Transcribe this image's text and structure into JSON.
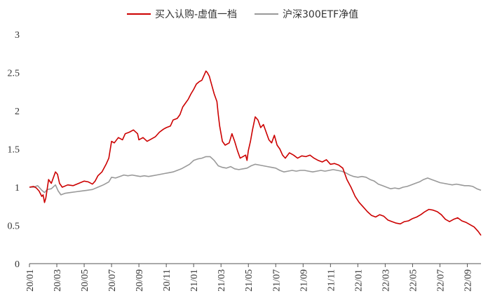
{
  "chart_data": {
    "type": "line",
    "title": "",
    "xlabel": "",
    "ylabel": "",
    "ylim": [
      0,
      3
    ],
    "y_ticks": [
      "0",
      "0.5",
      "1",
      "1.5",
      "2",
      "2.5",
      "3"
    ],
    "x_ticks": [
      "20/01",
      "20/03",
      "20/05",
      "20/07",
      "20/09",
      "20/11",
      "21/01",
      "21/03",
      "21/05",
      "21/07",
      "21/09",
      "21/11",
      "22/01",
      "22/03",
      "22/05",
      "22/07",
      "22/09"
    ],
    "x_range_months": [
      0,
      33
    ],
    "grid": false,
    "legend_position": "top-center",
    "series": [
      {
        "name": "买入认购-虚值一档",
        "color": "#cc0000",
        "points": [
          [
            0,
            1.0
          ],
          [
            0.3,
            1.01
          ],
          [
            0.5,
            0.99
          ],
          [
            0.7,
            0.95
          ],
          [
            0.9,
            0.88
          ],
          [
            1.0,
            0.9
          ],
          [
            1.1,
            0.8
          ],
          [
            1.2,
            0.86
          ],
          [
            1.4,
            1.1
          ],
          [
            1.6,
            1.05
          ],
          [
            1.8,
            1.15
          ],
          [
            1.9,
            1.2
          ],
          [
            2.05,
            1.17
          ],
          [
            2.2,
            1.05
          ],
          [
            2.4,
            1.0
          ],
          [
            2.8,
            1.03
          ],
          [
            3.2,
            1.02
          ],
          [
            3.6,
            1.05
          ],
          [
            4.0,
            1.08
          ],
          [
            4.3,
            1.07
          ],
          [
            4.6,
            1.04
          ],
          [
            4.8,
            1.08
          ],
          [
            5.0,
            1.15
          ],
          [
            5.3,
            1.2
          ],
          [
            5.6,
            1.3
          ],
          [
            5.8,
            1.38
          ],
          [
            6.0,
            1.6
          ],
          [
            6.2,
            1.58
          ],
          [
            6.5,
            1.65
          ],
          [
            6.8,
            1.62
          ],
          [
            7.0,
            1.7
          ],
          [
            7.3,
            1.72
          ],
          [
            7.6,
            1.75
          ],
          [
            7.9,
            1.7
          ],
          [
            8.0,
            1.62
          ],
          [
            8.3,
            1.65
          ],
          [
            8.6,
            1.6
          ],
          [
            8.9,
            1.63
          ],
          [
            9.2,
            1.66
          ],
          [
            9.5,
            1.72
          ],
          [
            9.8,
            1.76
          ],
          [
            10.0,
            1.78
          ],
          [
            10.3,
            1.8
          ],
          [
            10.5,
            1.88
          ],
          [
            10.8,
            1.9
          ],
          [
            11.0,
            1.95
          ],
          [
            11.2,
            2.05
          ],
          [
            11.4,
            2.1
          ],
          [
            11.6,
            2.15
          ],
          [
            11.8,
            2.22
          ],
          [
            12.0,
            2.28
          ],
          [
            12.2,
            2.35
          ],
          [
            12.4,
            2.38
          ],
          [
            12.6,
            2.4
          ],
          [
            12.8,
            2.48
          ],
          [
            12.9,
            2.52
          ],
          [
            13.0,
            2.5
          ],
          [
            13.15,
            2.45
          ],
          [
            13.3,
            2.35
          ],
          [
            13.5,
            2.22
          ],
          [
            13.7,
            2.12
          ],
          [
            13.8,
            1.95
          ],
          [
            13.9,
            1.8
          ],
          [
            14.1,
            1.6
          ],
          [
            14.3,
            1.55
          ],
          [
            14.6,
            1.58
          ],
          [
            14.8,
            1.7
          ],
          [
            15.0,
            1.6
          ],
          [
            15.2,
            1.48
          ],
          [
            15.4,
            1.38
          ],
          [
            15.6,
            1.4
          ],
          [
            15.8,
            1.42
          ],
          [
            15.9,
            1.35
          ],
          [
            16.0,
            1.48
          ],
          [
            16.15,
            1.6
          ],
          [
            16.3,
            1.75
          ],
          [
            16.5,
            1.92
          ],
          [
            16.7,
            1.88
          ],
          [
            16.9,
            1.78
          ],
          [
            17.1,
            1.82
          ],
          [
            17.3,
            1.72
          ],
          [
            17.5,
            1.62
          ],
          [
            17.7,
            1.58
          ],
          [
            17.9,
            1.68
          ],
          [
            18.1,
            1.55
          ],
          [
            18.3,
            1.5
          ],
          [
            18.5,
            1.42
          ],
          [
            18.7,
            1.38
          ],
          [
            19.0,
            1.45
          ],
          [
            19.3,
            1.42
          ],
          [
            19.6,
            1.38
          ],
          [
            19.9,
            1.41
          ],
          [
            20.2,
            1.4
          ],
          [
            20.5,
            1.42
          ],
          [
            20.8,
            1.38
          ],
          [
            21.1,
            1.35
          ],
          [
            21.4,
            1.33
          ],
          [
            21.7,
            1.36
          ],
          [
            22.0,
            1.3
          ],
          [
            22.3,
            1.31
          ],
          [
            22.6,
            1.29
          ],
          [
            22.9,
            1.25
          ],
          [
            23.2,
            1.1
          ],
          [
            23.5,
            1.0
          ],
          [
            23.8,
            0.88
          ],
          [
            24.1,
            0.8
          ],
          [
            24.4,
            0.74
          ],
          [
            24.7,
            0.68
          ],
          [
            25.0,
            0.63
          ],
          [
            25.3,
            0.61
          ],
          [
            25.6,
            0.64
          ],
          [
            25.9,
            0.62
          ],
          [
            26.2,
            0.57
          ],
          [
            26.5,
            0.55
          ],
          [
            26.8,
            0.53
          ],
          [
            27.1,
            0.52
          ],
          [
            27.4,
            0.55
          ],
          [
            27.7,
            0.56
          ],
          [
            28.0,
            0.59
          ],
          [
            28.3,
            0.61
          ],
          [
            28.6,
            0.64
          ],
          [
            28.9,
            0.68
          ],
          [
            29.2,
            0.71
          ],
          [
            29.5,
            0.7
          ],
          [
            29.8,
            0.68
          ],
          [
            30.1,
            0.64
          ],
          [
            30.4,
            0.58
          ],
          [
            30.7,
            0.55
          ],
          [
            31.0,
            0.58
          ],
          [
            31.3,
            0.6
          ],
          [
            31.6,
            0.56
          ],
          [
            31.9,
            0.54
          ],
          [
            32.2,
            0.51
          ],
          [
            32.5,
            0.48
          ],
          [
            32.8,
            0.42
          ],
          [
            33.0,
            0.37
          ]
        ]
      },
      {
        "name": "沪深300ETF净值",
        "color": "#999999",
        "points": [
          [
            0,
            1.0
          ],
          [
            0.3,
            1.0
          ],
          [
            0.6,
            1.02
          ],
          [
            0.9,
            0.96
          ],
          [
            1.1,
            0.93
          ],
          [
            1.3,
            0.97
          ],
          [
            1.6,
            0.98
          ],
          [
            1.9,
            1.03
          ],
          [
            2.1,
            0.95
          ],
          [
            2.3,
            0.9
          ],
          [
            2.6,
            0.92
          ],
          [
            3.0,
            0.93
          ],
          [
            3.4,
            0.94
          ],
          [
            3.8,
            0.95
          ],
          [
            4.2,
            0.96
          ],
          [
            4.6,
            0.97
          ],
          [
            5.0,
            1.0
          ],
          [
            5.4,
            1.03
          ],
          [
            5.8,
            1.07
          ],
          [
            6.0,
            1.13
          ],
          [
            6.3,
            1.12
          ],
          [
            6.6,
            1.14
          ],
          [
            6.9,
            1.16
          ],
          [
            7.2,
            1.15
          ],
          [
            7.5,
            1.16
          ],
          [
            7.8,
            1.15
          ],
          [
            8.1,
            1.14
          ],
          [
            8.4,
            1.15
          ],
          [
            8.7,
            1.14
          ],
          [
            9.0,
            1.15
          ],
          [
            9.3,
            1.16
          ],
          [
            9.6,
            1.17
          ],
          [
            9.9,
            1.18
          ],
          [
            10.2,
            1.19
          ],
          [
            10.5,
            1.2
          ],
          [
            10.8,
            1.22
          ],
          [
            11.1,
            1.24
          ],
          [
            11.4,
            1.27
          ],
          [
            11.7,
            1.3
          ],
          [
            12.0,
            1.35
          ],
          [
            12.3,
            1.37
          ],
          [
            12.6,
            1.38
          ],
          [
            12.9,
            1.4
          ],
          [
            13.2,
            1.4
          ],
          [
            13.5,
            1.35
          ],
          [
            13.8,
            1.28
          ],
          [
            14.1,
            1.26
          ],
          [
            14.4,
            1.25
          ],
          [
            14.7,
            1.27
          ],
          [
            15.0,
            1.24
          ],
          [
            15.3,
            1.23
          ],
          [
            15.6,
            1.24
          ],
          [
            15.9,
            1.25
          ],
          [
            16.2,
            1.28
          ],
          [
            16.5,
            1.3
          ],
          [
            16.8,
            1.29
          ],
          [
            17.1,
            1.28
          ],
          [
            17.4,
            1.27
          ],
          [
            17.7,
            1.26
          ],
          [
            18.0,
            1.25
          ],
          [
            18.3,
            1.22
          ],
          [
            18.6,
            1.2
          ],
          [
            18.9,
            1.21
          ],
          [
            19.2,
            1.22
          ],
          [
            19.5,
            1.21
          ],
          [
            19.8,
            1.22
          ],
          [
            20.1,
            1.22
          ],
          [
            20.4,
            1.21
          ],
          [
            20.7,
            1.2
          ],
          [
            21.0,
            1.21
          ],
          [
            21.3,
            1.22
          ],
          [
            21.6,
            1.21
          ],
          [
            21.9,
            1.22
          ],
          [
            22.2,
            1.23
          ],
          [
            22.5,
            1.22
          ],
          [
            22.8,
            1.21
          ],
          [
            23.1,
            1.19
          ],
          [
            23.4,
            1.16
          ],
          [
            23.7,
            1.14
          ],
          [
            24.0,
            1.13
          ],
          [
            24.3,
            1.14
          ],
          [
            24.6,
            1.13
          ],
          [
            24.9,
            1.1
          ],
          [
            25.2,
            1.08
          ],
          [
            25.5,
            1.04
          ],
          [
            25.8,
            1.02
          ],
          [
            26.1,
            1.0
          ],
          [
            26.4,
            0.98
          ],
          [
            26.7,
            0.99
          ],
          [
            27.0,
            0.98
          ],
          [
            27.3,
            1.0
          ],
          [
            27.6,
            1.01
          ],
          [
            27.9,
            1.03
          ],
          [
            28.2,
            1.05
          ],
          [
            28.5,
            1.07
          ],
          [
            28.8,
            1.1
          ],
          [
            29.1,
            1.12
          ],
          [
            29.4,
            1.1
          ],
          [
            29.7,
            1.08
          ],
          [
            30.0,
            1.06
          ],
          [
            30.3,
            1.05
          ],
          [
            30.6,
            1.04
          ],
          [
            30.9,
            1.03
          ],
          [
            31.2,
            1.04
          ],
          [
            31.5,
            1.03
          ],
          [
            31.8,
            1.02
          ],
          [
            32.1,
            1.02
          ],
          [
            32.4,
            1.01
          ],
          [
            32.7,
            0.98
          ],
          [
            33.0,
            0.96
          ]
        ]
      }
    ]
  }
}
